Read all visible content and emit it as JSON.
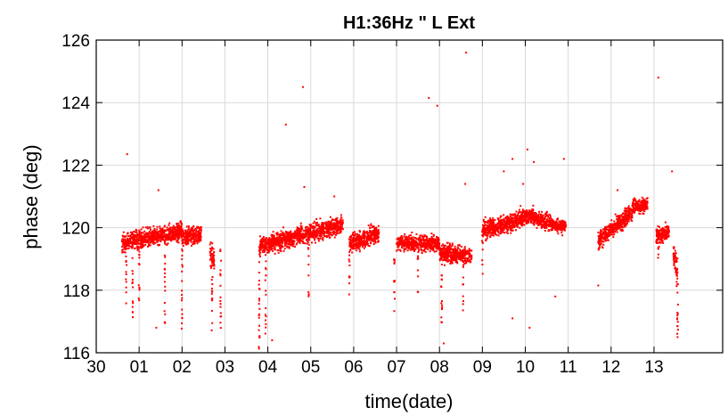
{
  "chart_data": {
    "type": "scatter",
    "title": "H1:36Hz \" L Ext",
    "xlabel": "time(date)",
    "ylabel": "phase (deg)",
    "xlim": [
      0,
      14.6
    ],
    "ylim": [
      116,
      126
    ],
    "x_tick_labels": [
      "30",
      "01",
      "02",
      "03",
      "04",
      "05",
      "06",
      "07",
      "08",
      "09",
      "10",
      "11",
      "12",
      "13"
    ],
    "x_tick_values": [
      0,
      1,
      2,
      3,
      4,
      5,
      6,
      7,
      8,
      9,
      10,
      11,
      12,
      13
    ],
    "y_ticks": [
      116,
      118,
      120,
      122,
      124,
      126
    ],
    "grid": true,
    "marker_color": "#ff0000",
    "segments": [
      {
        "x_start": 0.6,
        "x_end": 2.0,
        "y_start": 119.5,
        "y_end": 119.9,
        "spread": 0.3
      },
      {
        "x_start": 2.0,
        "x_end": 2.45,
        "y_start": 119.7,
        "y_end": 119.8,
        "spread": 0.3
      },
      {
        "x_start": 2.65,
        "x_end": 2.75,
        "y_start": 119.1,
        "y_end": 119.0,
        "spread": 0.5
      },
      {
        "x_start": 3.8,
        "x_end": 5.75,
        "y_start": 119.4,
        "y_end": 120.1,
        "spread": 0.3
      },
      {
        "x_start": 5.9,
        "x_end": 6.6,
        "y_start": 119.5,
        "y_end": 119.8,
        "spread": 0.3
      },
      {
        "x_start": 7.0,
        "x_end": 8.0,
        "y_start": 119.5,
        "y_end": 119.5,
        "spread": 0.25
      },
      {
        "x_start": 8.0,
        "x_end": 8.75,
        "y_start": 119.2,
        "y_end": 119.1,
        "spread": 0.3
      },
      {
        "x_start": 9.0,
        "x_end": 10.2,
        "y_start": 119.9,
        "y_end": 120.4,
        "spread": 0.3
      },
      {
        "x_start": 10.2,
        "x_end": 10.95,
        "y_start": 120.3,
        "y_end": 120.0,
        "spread": 0.25
      },
      {
        "x_start": 11.7,
        "x_end": 12.5,
        "y_start": 119.6,
        "y_end": 120.5,
        "spread": 0.3
      },
      {
        "x_start": 12.5,
        "x_end": 12.85,
        "y_start": 120.7,
        "y_end": 120.7,
        "spread": 0.25
      },
      {
        "x_start": 13.05,
        "x_end": 13.35,
        "y_start": 119.7,
        "y_end": 119.9,
        "spread": 0.3
      },
      {
        "x_start": 13.45,
        "x_end": 13.55,
        "y_start": 119.2,
        "y_end": 118.5,
        "spread": 0.5
      }
    ],
    "outliers": [
      {
        "x": 0.72,
        "y": 122.35
      },
      {
        "x": 1.45,
        "y": 121.2
      },
      {
        "x": 4.42,
        "y": 123.3
      },
      {
        "x": 4.82,
        "y": 124.5
      },
      {
        "x": 4.85,
        "y": 121.3
      },
      {
        "x": 5.55,
        "y": 121.0
      },
      {
        "x": 7.75,
        "y": 124.15
      },
      {
        "x": 7.95,
        "y": 123.9
      },
      {
        "x": 8.62,
        "y": 125.6
      },
      {
        "x": 8.6,
        "y": 121.4
      },
      {
        "x": 9.5,
        "y": 121.8
      },
      {
        "x": 9.7,
        "y": 122.2
      },
      {
        "x": 9.95,
        "y": 121.4
      },
      {
        "x": 10.05,
        "y": 122.5
      },
      {
        "x": 10.2,
        "y": 122.1
      },
      {
        "x": 10.9,
        "y": 122.2
      },
      {
        "x": 12.15,
        "y": 121.2
      },
      {
        "x": 13.1,
        "y": 124.8
      },
      {
        "x": 13.42,
        "y": 121.8
      },
      {
        "x": 11.7,
        "y": 118.15
      },
      {
        "x": 1.4,
        "y": 116.8
      },
      {
        "x": 8.1,
        "y": 116.3
      },
      {
        "x": 9.7,
        "y": 117.1
      },
      {
        "x": 10.1,
        "y": 116.8
      },
      {
        "x": 10.7,
        "y": 117.8
      },
      {
        "x": 4.1,
        "y": 116.4
      },
      {
        "x": 13.55,
        "y": 116.5
      }
    ],
    "dropouts": [
      {
        "x": 0.7,
        "y_min": 117.5,
        "y_max": 119.6
      },
      {
        "x": 0.85,
        "y_min": 116.9,
        "y_max": 119.6
      },
      {
        "x": 1.0,
        "y_min": 117.2,
        "y_max": 119.6
      },
      {
        "x": 1.6,
        "y_min": 116.9,
        "y_max": 119.8
      },
      {
        "x": 2.0,
        "y_min": 116.5,
        "y_max": 119.8
      },
      {
        "x": 2.7,
        "y_min": 116.6,
        "y_max": 119.5
      },
      {
        "x": 2.9,
        "y_min": 116.6,
        "y_max": 119.5
      },
      {
        "x": 3.8,
        "y_min": 116.0,
        "y_max": 119.4
      },
      {
        "x": 3.95,
        "y_min": 116.2,
        "y_max": 119.4
      },
      {
        "x": 4.95,
        "y_min": 117.5,
        "y_max": 120.0
      },
      {
        "x": 5.9,
        "y_min": 117.6,
        "y_max": 119.6
      },
      {
        "x": 6.95,
        "y_min": 117.3,
        "y_max": 119.5
      },
      {
        "x": 7.5,
        "y_min": 117.9,
        "y_max": 119.5
      },
      {
        "x": 8.05,
        "y_min": 116.6,
        "y_max": 119.3
      },
      {
        "x": 8.55,
        "y_min": 117.3,
        "y_max": 119.2
      },
      {
        "x": 9.0,
        "y_min": 118.3,
        "y_max": 119.9
      },
      {
        "x": 13.1,
        "y_min": 118.9,
        "y_max": 119.8
      },
      {
        "x": 13.55,
        "y_min": 116.6,
        "y_max": 119.1
      }
    ]
  }
}
